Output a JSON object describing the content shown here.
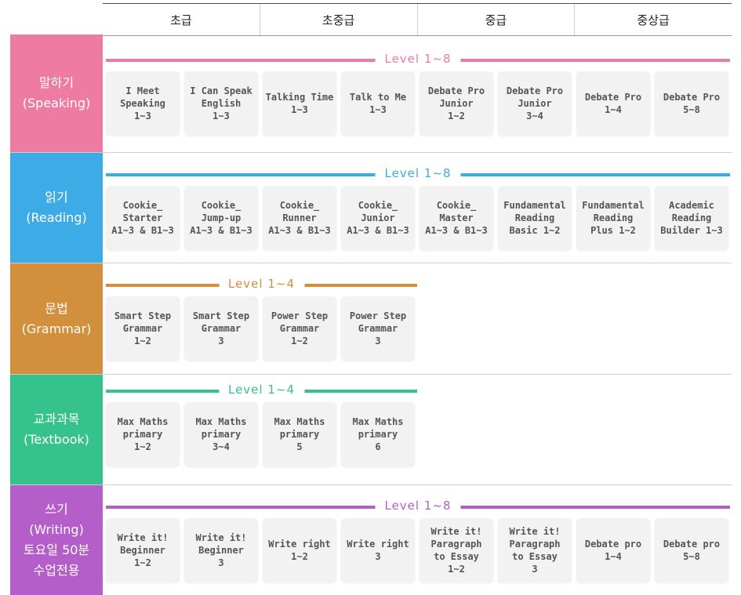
{
  "columns": [
    "초급",
    "초중급",
    "중급",
    "중상급"
  ],
  "rows": [
    {
      "id": "speaking",
      "color": "#ee7ba1",
      "label_lines": [
        "말하기",
        "(Speaking)"
      ],
      "level": "Level 1~8",
      "courses": [
        [
          "I Meet",
          "Speaking",
          "1~3"
        ],
        [
          "I Can Speak",
          "English",
          "1~3"
        ],
        [
          "Talking Time",
          "1~3"
        ],
        [
          "Talk to Me",
          "1~3"
        ],
        [
          "Debate Pro",
          "Junior",
          "1~2"
        ],
        [
          "Debate Pro",
          "Junior",
          "3~4"
        ],
        [
          "Debate Pro",
          "1~4"
        ],
        [
          "Debate Pro",
          "5~8"
        ]
      ]
    },
    {
      "id": "reading",
      "color": "#3cabe6",
      "label_lines": [
        "읽기",
        "(Reading)"
      ],
      "level": "Level 1~8",
      "courses": [
        [
          "Cookie_",
          "Starter",
          "A1~3 & B1~3"
        ],
        [
          "Cookie_",
          "Jump-up",
          "A1~3 & B1~3"
        ],
        [
          "Cookie_",
          "Runner",
          "A1~3 & B1~3"
        ],
        [
          "Cookie_",
          "Junior",
          "A1~3 & B1~3"
        ],
        [
          "Cookie_",
          "Master",
          "A1~3 & B1~3"
        ],
        [
          "Fundamental",
          "Reading",
          "Basic 1~2"
        ],
        [
          "Fundamental",
          "Reading",
          "Plus 1~2"
        ],
        [
          "Academic",
          "Reading",
          "Builder 1~3"
        ]
      ]
    },
    {
      "id": "grammar",
      "color": "#d28f3c",
      "label_lines": [
        "문법",
        "(Grammar)"
      ],
      "level": "Level 1~4",
      "courses": [
        [
          "Smart Step",
          "Grammar",
          "1~2"
        ],
        [
          "Smart Step",
          "Grammar",
          "3"
        ],
        [
          "Power Step",
          "Grammar",
          "1~2"
        ],
        [
          "Power Step",
          "Grammar",
          "3"
        ]
      ]
    },
    {
      "id": "textbook",
      "color": "#36c28d",
      "label_lines": [
        "교과과목",
        "(Textbook)"
      ],
      "level": "Level 1~4",
      "courses": [
        [
          "Max Maths",
          "primary",
          "1~2"
        ],
        [
          "Max Maths",
          "primary",
          "3~4"
        ],
        [
          "Max Maths",
          "primary",
          "5"
        ],
        [
          "Max Maths",
          "primary",
          "6"
        ]
      ]
    },
    {
      "id": "writing",
      "color": "#b45ec9",
      "label_lines": [
        "쓰기",
        "(Writing)",
        "토요일 50분",
        "수업전용"
      ],
      "level": "Level 1~8",
      "courses": [
        [
          "Write it!",
          "Beginner",
          "1~2"
        ],
        [
          "Write it!",
          "Beginner",
          "3"
        ],
        [
          "Write right",
          "1~2"
        ],
        [
          "Write right",
          "3"
        ],
        [
          "Write it!",
          "Paragraph",
          "to Essay",
          "1~2"
        ],
        [
          "Write it!",
          "Paragraph",
          "to Essay",
          "3"
        ],
        [
          "Debate pro",
          "1~4"
        ],
        [
          "Debate pro",
          "5~8"
        ]
      ]
    }
  ]
}
